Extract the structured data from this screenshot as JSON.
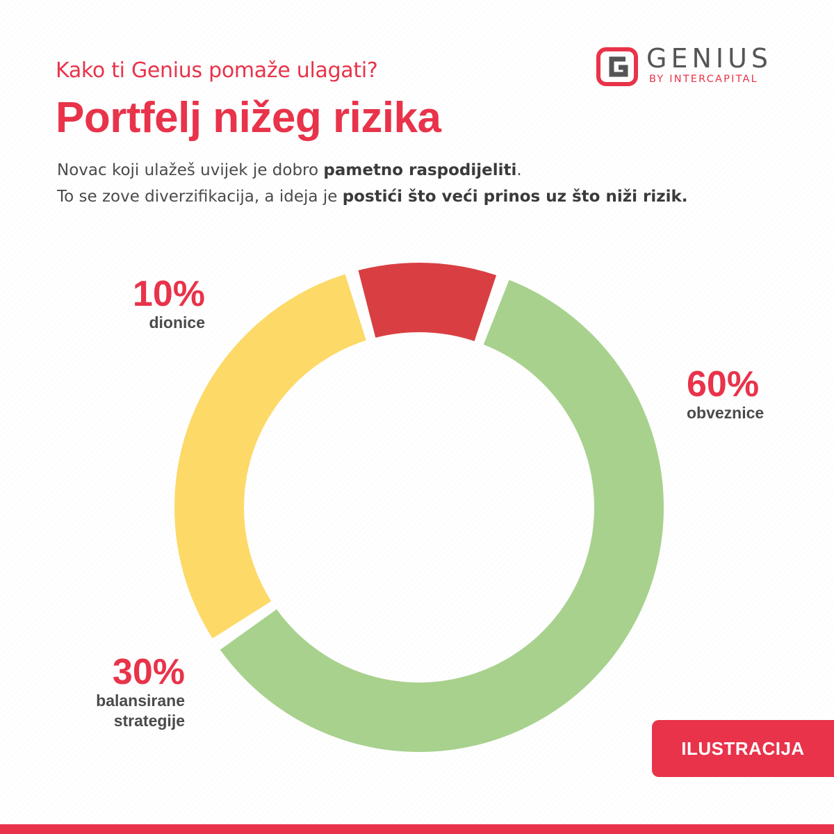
{
  "header": {
    "subtitle": "Kako ti Genius pomaže ulagati?",
    "title": "Portfelj nižeg rizika",
    "desc_line1_plain": "Novac koji ulažeš uvijek je dobro ",
    "desc_line1_bold": "pametno raspodijeliti",
    "desc_line1_end": ".",
    "desc_line2_plain": "To se zove diverzifikacija, a ideja je ",
    "desc_line2_bold": "postići što veći prinos uz što niži rizik."
  },
  "logo": {
    "name": "GENIUS",
    "tagline": "BY INTERCAPITAL",
    "icon": "genius-g-logo-icon"
  },
  "chart_data": {
    "type": "pie",
    "variant": "donut",
    "slices": [
      {
        "label": "obveznice",
        "value": 60,
        "value_label": "60%",
        "color": "#a8d18d"
      },
      {
        "label": "balansirane strategije",
        "label_lines": [
          "balansirane",
          "strategije"
        ],
        "value": 30,
        "value_label": "30%",
        "color": "#fdd968"
      },
      {
        "label": "dionice",
        "value": 10,
        "value_label": "10%",
        "color": "#d93f42"
      }
    ]
  },
  "badge": {
    "label": "ILUSTRACIJA"
  },
  "colors": {
    "accent": "#e8334a",
    "text": "#4a4a4a",
    "logo_gray": "#555555"
  }
}
